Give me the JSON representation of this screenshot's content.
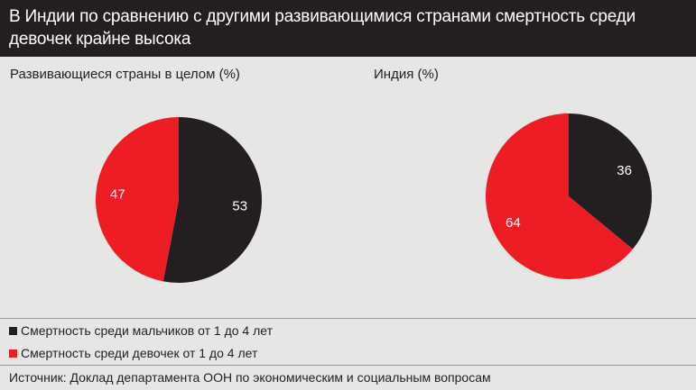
{
  "header": {
    "title": "В Индии по сравнению с другими развивающимися странами смертность среди девочек крайне высока"
  },
  "chart_data": [
    {
      "type": "pie",
      "title": "Развивающиеся страны в целом (%)",
      "slices": [
        {
          "name": "Смертность среди мальчиков от 1 до 4 лет",
          "value": 53,
          "label": "53",
          "color": "#231f20",
          "label_color": "#ffffff"
        },
        {
          "name": "Смертность среди девочек от 1 до 4 лет",
          "value": 47,
          "label": "47",
          "color": "#ee1c25",
          "label_color": "#ffffff"
        }
      ]
    },
    {
      "type": "pie",
      "title": "Индия (%)",
      "slices": [
        {
          "name": "Смертность среди мальчиков от 1 до 4 лет",
          "value": 36,
          "label": "36",
          "color": "#231f20",
          "label_color": "#ffffff"
        },
        {
          "name": "Смертность среди девочек от 1 до 4 лет",
          "value": 64,
          "label": "64",
          "color": "#ee1c25",
          "label_color": "#ffffff"
        }
      ]
    }
  ],
  "legend": [
    {
      "label": "Смертность среди мальчиков от 1 до 4 лет",
      "color": "#231f20"
    },
    {
      "label": "Смертность среди девочек от 1 до 4 лет",
      "color": "#ee1c25"
    }
  ],
  "source": "Источник: Доклад департамента ООН по экономическим и социальным вопросам"
}
